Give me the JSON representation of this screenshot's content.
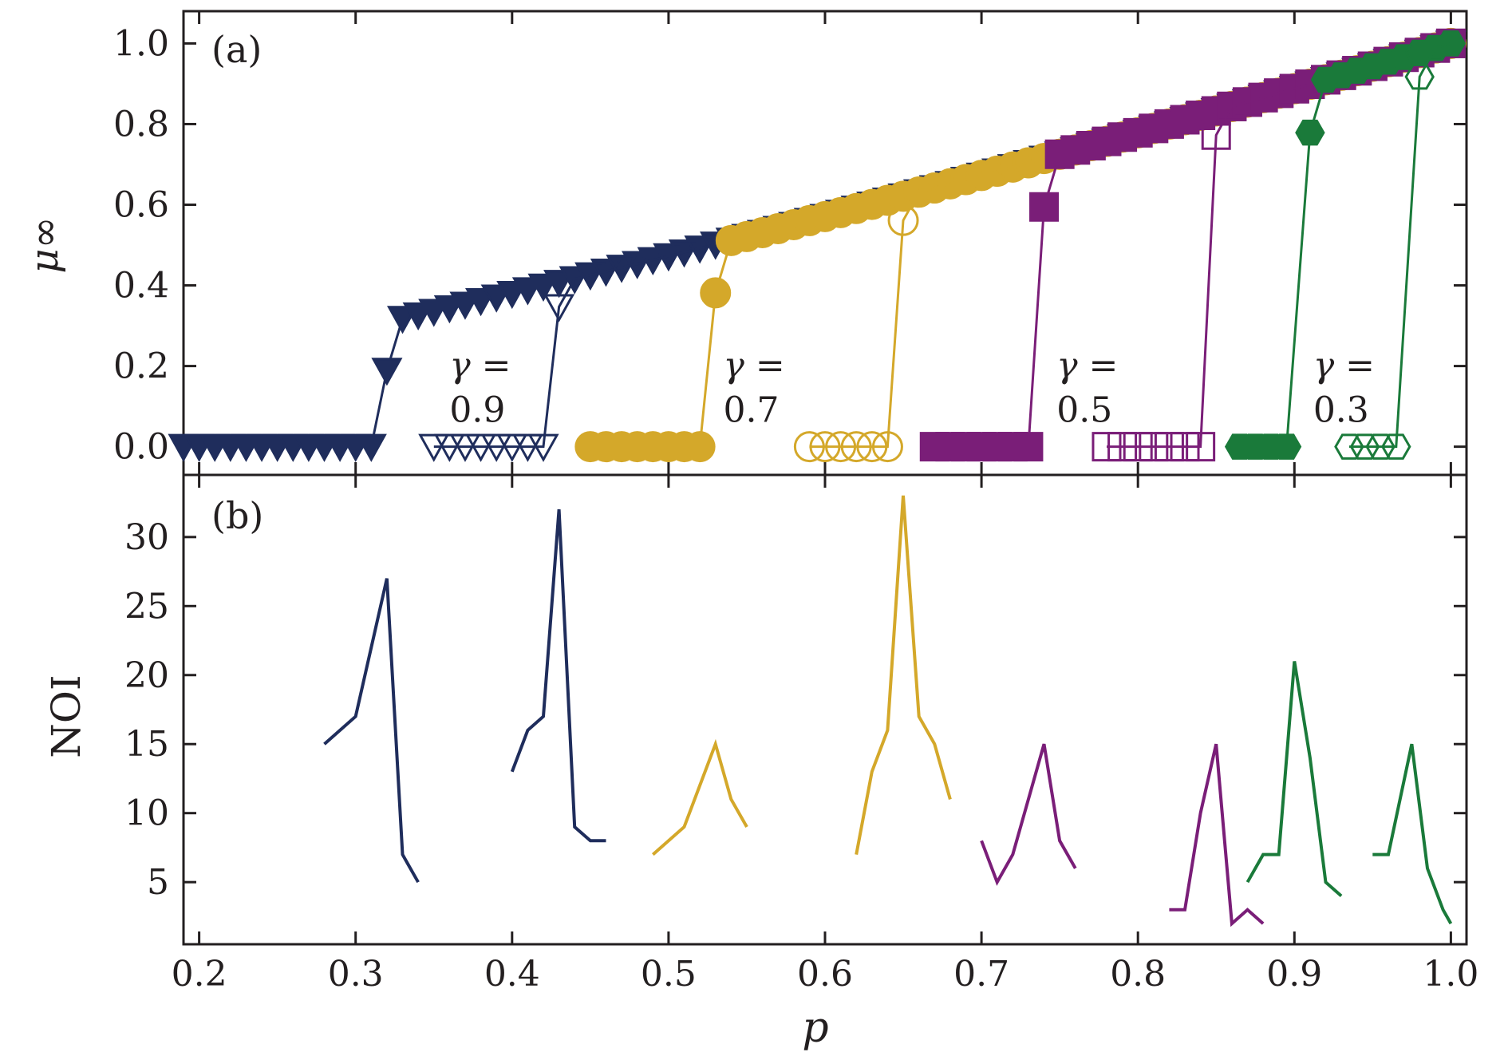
{
  "colors": {
    "gamma_0.9": "#1f2d5c",
    "gamma_0.7": "#d4a82a",
    "gamma_0.5": "#7a1e78",
    "gamma_0.3": "#1a7a3a",
    "axis": "#231f20"
  },
  "chart_data": [
    {
      "type": "line",
      "panel_label": "(a)",
      "xlabel": "p",
      "ylabel": "μ∞",
      "xlim": [
        0.19,
        1.01
      ],
      "ylim": [
        -0.07,
        1.08
      ],
      "xticks": [
        0.2,
        0.3,
        0.4,
        0.5,
        0.6,
        0.7,
        0.8,
        0.9,
        1.0
      ],
      "xtick_labels": [
        "0.2",
        "0.3",
        "0.4",
        "0.5",
        "0.6",
        "0.7",
        "0.8",
        "0.9",
        "1.0"
      ],
      "yticks": [
        0.0,
        0.2,
        0.4,
        0.6,
        0.8,
        1.0
      ],
      "ytick_labels": [
        "0.0",
        "0.2",
        "0.4",
        "0.6",
        "0.8",
        "1.0"
      ],
      "annotations": [
        {
          "line1": "γ =",
          "line2": "0.9",
          "x": 0.36,
          "y": 0.2
        },
        {
          "line1": "γ =",
          "line2": "0.7",
          "x": 0.535,
          "y": 0.2
        },
        {
          "line1": "γ =",
          "line2": "0.5",
          "x": 0.748,
          "y": 0.2
        },
        {
          "line1": "γ =",
          "line2": "0.3",
          "x": 0.912,
          "y": 0.2
        }
      ],
      "series": [
        {
          "name": "γ=0.9 (filled)",
          "gamma": "0.9",
          "marker": "triangle-down",
          "filled": true,
          "pc": 0.31,
          "start": 0.19
        },
        {
          "name": "γ=0.9 (open)",
          "gamma": "0.9",
          "marker": "triangle-down",
          "filled": false,
          "pc": 0.42,
          "start": 0.35
        },
        {
          "name": "γ=0.7 (filled)",
          "gamma": "0.7",
          "marker": "circle",
          "filled": true,
          "pc": 0.52,
          "start": 0.45
        },
        {
          "name": "γ=0.7 (open)",
          "gamma": "0.7",
          "marker": "circle",
          "filled": false,
          "pc": 0.64,
          "start": 0.59
        },
        {
          "name": "γ=0.5 (filled)",
          "gamma": "0.5",
          "marker": "square",
          "filled": true,
          "pc": 0.73,
          "start": 0.67
        },
        {
          "name": "γ=0.5 (open)",
          "gamma": "0.5",
          "marker": "square",
          "filled": false,
          "pc": 0.84,
          "start": 0.78
        },
        {
          "name": "γ=0.3 (filled)",
          "gamma": "0.3",
          "marker": "hexagon",
          "filled": true,
          "pc": 0.9,
          "start": 0.865
        },
        {
          "name": "γ=0.3 (open)",
          "gamma": "0.3",
          "marker": "hexagon",
          "filled": false,
          "pc": 0.97,
          "start": 0.935
        }
      ]
    },
    {
      "type": "line",
      "panel_label": "(b)",
      "xlabel": "p",
      "ylabel": "NOI",
      "xlim": [
        0.19,
        1.01
      ],
      "ylim": [
        0.5,
        34.5
      ],
      "xticks": [
        0.2,
        0.3,
        0.4,
        0.5,
        0.6,
        0.7,
        0.8,
        0.9,
        1.0
      ],
      "xtick_labels": [
        "0.2",
        "0.3",
        "0.4",
        "0.5",
        "0.6",
        "0.7",
        "0.8",
        "0.9",
        "1.0"
      ],
      "yticks": [
        5,
        10,
        15,
        20,
        25,
        30
      ],
      "ytick_labels": [
        "5",
        "10",
        "15",
        "20",
        "25",
        "30"
      ],
      "series": [
        {
          "name": "γ=0.9 filled",
          "gamma": "0.9",
          "x": [
            0.28,
            0.3,
            0.32,
            0.33,
            0.34
          ],
          "y": [
            15,
            17,
            27,
            7,
            5
          ]
        },
        {
          "name": "γ=0.9 open",
          "gamma": "0.9",
          "x": [
            0.4,
            0.41,
            0.42,
            0.43,
            0.44,
            0.45,
            0.46
          ],
          "y": [
            13,
            16,
            17,
            32,
            9,
            8,
            8
          ]
        },
        {
          "name": "γ=0.7 filled",
          "gamma": "0.7",
          "x": [
            0.49,
            0.51,
            0.53,
            0.54,
            0.55
          ],
          "y": [
            7,
            9,
            15,
            11,
            9
          ]
        },
        {
          "name": "γ=0.7 open",
          "gamma": "0.7",
          "x": [
            0.62,
            0.63,
            0.64,
            0.65,
            0.66,
            0.67,
            0.68
          ],
          "y": [
            7,
            13,
            16,
            33,
            17,
            15,
            11
          ]
        },
        {
          "name": "γ=0.5 filled",
          "gamma": "0.5",
          "x": [
            0.7,
            0.71,
            0.72,
            0.74,
            0.75,
            0.76
          ],
          "y": [
            8,
            5,
            7,
            15,
            8,
            6
          ]
        },
        {
          "name": "γ=0.5 open",
          "gamma": "0.5",
          "x": [
            0.82,
            0.83,
            0.84,
            0.85,
            0.86,
            0.87,
            0.88
          ],
          "y": [
            3,
            3,
            10,
            15,
            2,
            3,
            2
          ]
        },
        {
          "name": "γ=0.3 filled",
          "gamma": "0.3",
          "x": [
            0.87,
            0.88,
            0.89,
            0.9,
            0.91,
            0.92,
            0.93
          ],
          "y": [
            5,
            7,
            7,
            21,
            14,
            5,
            4
          ]
        },
        {
          "name": "γ=0.3 open",
          "gamma": "0.3",
          "x": [
            0.95,
            0.96,
            0.975,
            0.985,
            0.995,
            1.0
          ],
          "y": [
            7,
            7,
            15,
            6,
            3,
            2
          ]
        }
      ]
    }
  ]
}
